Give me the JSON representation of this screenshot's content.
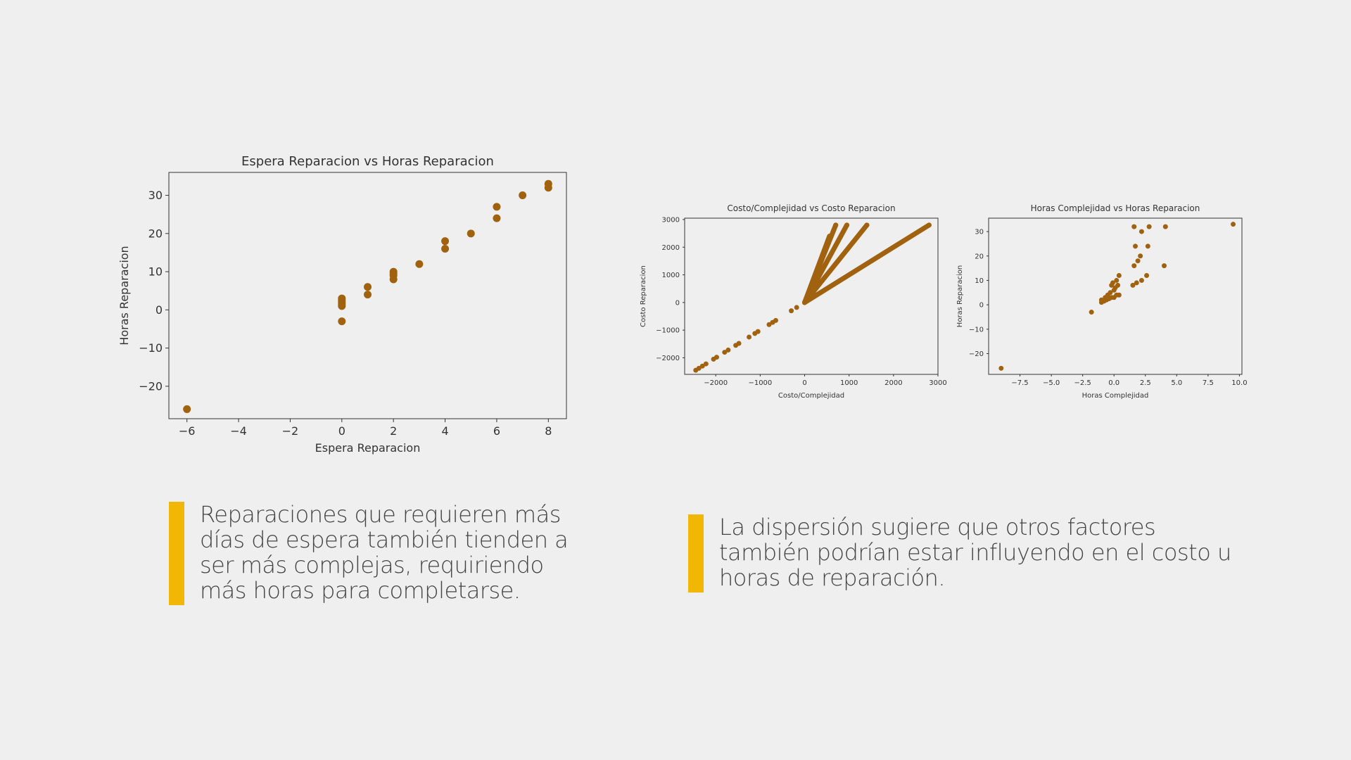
{
  "colors": {
    "point": "#a0620e",
    "accent": "#f2b705",
    "background": "#efefef"
  },
  "chart_data": [
    {
      "type": "scatter",
      "title": "Espera Reparacion vs Horas Reparacion",
      "xlabel": "Espera Reparacion",
      "ylabel": "Horas Reparacion",
      "xlim": [
        -6.7,
        8.7
      ],
      "ylim": [
        -28.5,
        36
      ],
      "xticks": [
        -6,
        -4,
        -2,
        0,
        2,
        4,
        6,
        8
      ],
      "yticks": [
        -20,
        -10,
        0,
        10,
        20,
        30
      ],
      "x": [
        -6,
        0,
        0,
        0,
        0,
        0,
        0,
        1,
        1,
        2,
        2,
        2,
        2,
        3,
        4,
        4,
        5,
        6,
        6,
        7,
        8,
        8
      ],
      "y": [
        -26,
        -3,
        1,
        2,
        3,
        2.5,
        1.5,
        4,
        6,
        8,
        9,
        10,
        9.5,
        12,
        16,
        18,
        20,
        24,
        27,
        30,
        32,
        33
      ]
    },
    {
      "type": "scatter",
      "title": "Costo/Complejidad vs Costo Reparacion",
      "xlabel": "Costo/Complejidad",
      "ylabel": "Costo Reparacion",
      "xlim": [
        -2700,
        3000
      ],
      "ylim": [
        -2600,
        3050
      ],
      "xticks": [
        -2000,
        -1000,
        0,
        1000,
        2000,
        3000
      ],
      "yticks": [
        -2000,
        -1000,
        0,
        1000,
        2000,
        3000
      ],
      "x": [
        -2450,
        -2380,
        -2300,
        -2220,
        -2050,
        -1980,
        -1800,
        -1720,
        -1550,
        -1480,
        -1250,
        -1120,
        -1050,
        -800,
        -720,
        -650,
        -300,
        -180,
        0,
        2800,
        1400,
        950,
        700,
        650
      ],
      "y": [
        -2450,
        -2380,
        -2300,
        -2220,
        -2050,
        -1980,
        -1800,
        -1720,
        -1550,
        -1480,
        -1250,
        -1120,
        -1050,
        -800,
        -720,
        -650,
        -300,
        -180,
        0,
        2800,
        2800,
        2800,
        2800,
        2600
      ],
      "rays": [
        {
          "x": [
            0,
            2800
          ],
          "y": [
            0,
            2800
          ]
        },
        {
          "x": [
            0,
            1400
          ],
          "y": [
            0,
            2800
          ]
        },
        {
          "x": [
            0,
            950
          ],
          "y": [
            0,
            2800
          ]
        },
        {
          "x": [
            0,
            700
          ],
          "y": [
            0,
            2800
          ]
        },
        {
          "x": [
            0,
            560
          ],
          "y": [
            0,
            2400
          ]
        }
      ]
    },
    {
      "type": "scatter",
      "title": "Horas Complejidad vs Horas Reparacion",
      "xlabel": "Horas Complejidad",
      "ylabel": "Horas Reparacion",
      "xlim": [
        -10,
        10.2
      ],
      "ylim": [
        -28.5,
        35.5
      ],
      "xticks": [
        -7.5,
        -5.0,
        -2.5,
        0.0,
        2.5,
        5.0,
        7.5,
        10.0
      ],
      "yticks": [
        -20,
        -10,
        0,
        10,
        20,
        30
      ],
      "x": [
        -9,
        -1,
        -0.8,
        -0.6,
        -0.4,
        -0.2,
        0,
        0.2,
        0.4,
        -1,
        -0.7,
        -0.5,
        -0.3,
        0,
        0.1,
        -0.2,
        0.3,
        -0.1,
        0.2,
        0.4,
        1.5,
        1.8,
        2.2,
        2.6,
        1.6,
        1.9,
        2.1,
        2.7,
        1.7,
        2.2,
        2.8,
        1.6,
        4,
        4.1,
        9.5,
        -1.8
      ],
      "y": [
        -26,
        1,
        1.5,
        2,
        2.5,
        3,
        3,
        4,
        4,
        2,
        3,
        4,
        5,
        6,
        7,
        8,
        8,
        9,
        10,
        12,
        8,
        9,
        10,
        12,
        16,
        18,
        20,
        24,
        24,
        30,
        32,
        32,
        16,
        32,
        33,
        -3
      ]
    }
  ],
  "captions": {
    "left": "Reparaciones que requieren más días de espera también tienden a ser más complejas, requiriendo más horas para completarse.",
    "right": "La dispersión sugiere que otros factores también podrían estar influyendo en el costo u horas de reparación."
  }
}
